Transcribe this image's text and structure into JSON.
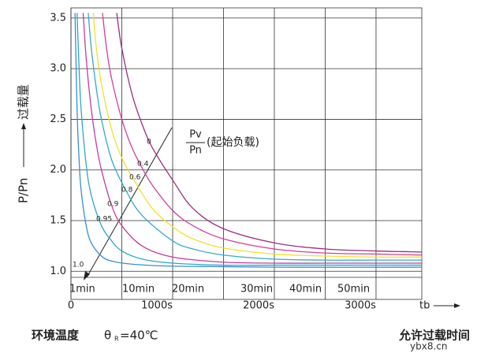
{
  "chart_data": {
    "type": "line",
    "y_label_left": "P/Pn",
    "y_label_right": "过载量",
    "x_label": "tb",
    "load_numerator": "Pv",
    "load_denominator": "Pn",
    "load_note": "(起始负载)",
    "ambient_label": "环境温度",
    "theta": "θ",
    "theta_sub": "R",
    "ambient_value": "=40℃",
    "bottom_right": "允许过载时间",
    "watermark": "ybx8.cn",
    "minute_labels": [
      "1min",
      "10min",
      "20min",
      "30min",
      "40min",
      "50min"
    ],
    "xlim": [
      0,
      3450
    ],
    "ylim": [
      0.94,
      3.6
    ],
    "xticks": [
      0,
      {
        "value": 1000,
        "label": "1000s"
      },
      {
        "value": 2000,
        "label": "2000s"
      },
      {
        "value": 3000,
        "label": "3000s"
      }
    ],
    "yticks": [
      {
        "value": 1,
        "label": "1.0"
      },
      1.5,
      {
        "value": 2,
        "label": "2.0"
      },
      2.5,
      {
        "value": 3,
        "label": "3.0"
      },
      3.5
    ],
    "xgrid": [
      500,
      1500,
      2500
    ],
    "grid": true,
    "series": [
      {
        "name": "0",
        "color": "#9b2d86",
        "x": [
          450,
          500,
          600,
          700,
          800,
          1000,
          1200,
          1500,
          2000,
          2500,
          3000,
          3450
        ],
        "values": [
          3.55,
          3.2,
          2.75,
          2.45,
          2.22,
          1.9,
          1.62,
          1.42,
          1.28,
          1.22,
          1.2,
          1.19
        ]
      },
      {
        "name": "0.4",
        "color": "#d0409a",
        "x": [
          310,
          350,
          400,
          500,
          600,
          700,
          800,
          1000,
          1200,
          1500,
          2000,
          2500,
          3000,
          3450
        ],
        "values": [
          3.55,
          3.2,
          2.9,
          2.5,
          2.22,
          2.02,
          1.85,
          1.6,
          1.45,
          1.32,
          1.22,
          1.18,
          1.17,
          1.16
        ]
      },
      {
        "name": "0.6",
        "color": "#f0e22c",
        "x": [
          220,
          250,
          300,
          400,
          500,
          620,
          800,
          1000,
          1200,
          1500,
          2000,
          2500,
          3000,
          3450
        ],
        "values": [
          3.55,
          3.2,
          2.85,
          2.4,
          2.12,
          1.9,
          1.62,
          1.44,
          1.32,
          1.23,
          1.17,
          1.15,
          1.14,
          1.14
        ]
      },
      {
        "name": "0.8",
        "color": "#33aacc",
        "x": [
          170,
          200,
          250,
          300,
          400,
          550,
          700,
          1000,
          1200,
          1500,
          2000,
          2500,
          3000,
          3450
        ],
        "values": [
          3.55,
          3.2,
          2.8,
          2.5,
          2.1,
          1.78,
          1.55,
          1.3,
          1.22,
          1.16,
          1.12,
          1.11,
          1.11,
          1.11
        ]
      },
      {
        "name": "0.9",
        "color": "#cc3a9a",
        "x": [
          120,
          150,
          200,
          250,
          300,
          400,
          500,
          700,
          1000,
          1500,
          2000,
          2500,
          3000,
          3450
        ],
        "values": [
          3.55,
          3.1,
          2.6,
          2.25,
          2.0,
          1.65,
          1.45,
          1.25,
          1.14,
          1.09,
          1.08,
          1.08,
          1.08,
          1.08
        ]
      },
      {
        "name": "0.95",
        "color": "#2aa8c8",
        "x": [
          60,
          80,
          100,
          150,
          200,
          300,
          400,
          500,
          700,
          1000,
          1500,
          2000,
          3000,
          3450
        ],
        "values": [
          3.55,
          3.0,
          2.6,
          2.05,
          1.75,
          1.45,
          1.3,
          1.2,
          1.12,
          1.08,
          1.06,
          1.06,
          1.06,
          1.06
        ]
      },
      {
        "name": "1.0",
        "color": "#3a8fd0",
        "x": [
          40,
          60,
          80,
          100,
          150,
          200,
          300,
          400,
          600,
          1000,
          2000,
          3450
        ],
        "values": [
          3.55,
          2.6,
          2.1,
          1.8,
          1.45,
          1.28,
          1.15,
          1.1,
          1.07,
          1.05,
          1.04,
          1.04
        ]
      }
    ]
  }
}
